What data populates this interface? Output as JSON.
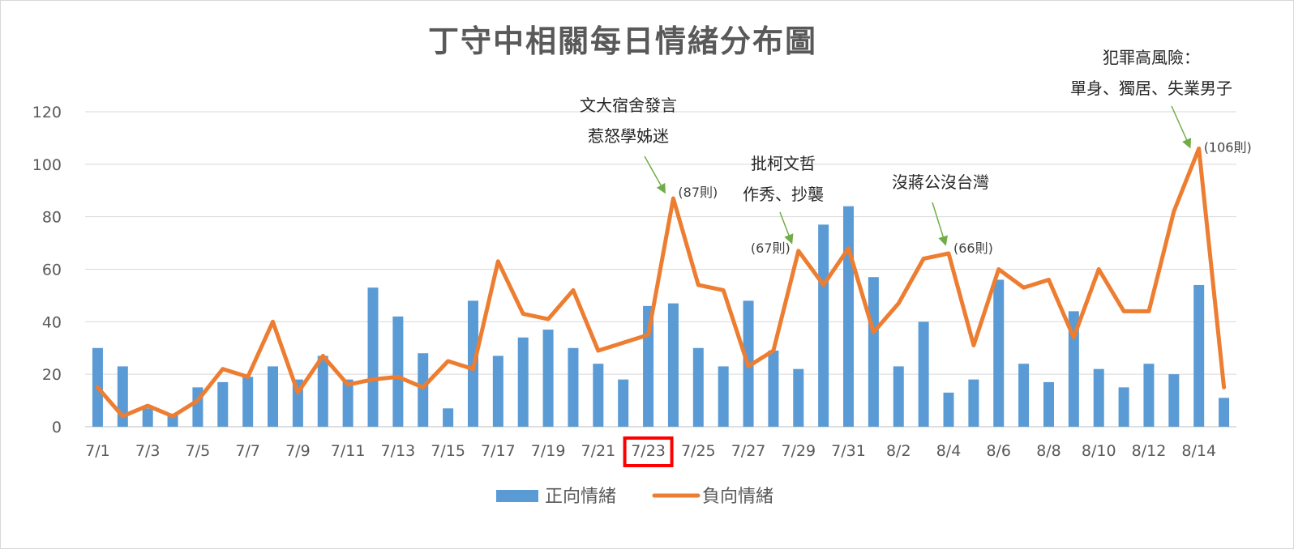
{
  "chart_data": {
    "type": "bar+line",
    "title": "丁守中相關每日情緒分布圖",
    "ylim": [
      0,
      120
    ],
    "yticks": [
      0,
      20,
      40,
      60,
      80,
      100,
      120
    ],
    "grid": true,
    "legend_position": "bottom",
    "categories": [
      "7/1",
      "7/2",
      "7/3",
      "7/4",
      "7/5",
      "7/6",
      "7/7",
      "7/8",
      "7/9",
      "7/10",
      "7/11",
      "7/12",
      "7/13",
      "7/14",
      "7/15",
      "7/16",
      "7/17",
      "7/18",
      "7/19",
      "7/20",
      "7/21",
      "7/22",
      "7/23",
      "7/24",
      "7/25",
      "7/26",
      "7/27",
      "7/28",
      "7/29",
      "7/30",
      "7/31",
      "8/1",
      "8/2",
      "8/3",
      "8/4",
      "8/5",
      "8/6",
      "8/7",
      "8/8",
      "8/9",
      "8/10",
      "8/11",
      "8/12",
      "8/13",
      "8/14",
      "8/15"
    ],
    "x_tick_labels": [
      "7/1",
      "7/3",
      "7/5",
      "7/7",
      "7/9",
      "7/11",
      "7/13",
      "7/15",
      "7/17",
      "7/19",
      "7/21",
      "7/23",
      "7/25",
      "7/27",
      "7/29",
      "7/31",
      "8/2",
      "8/4",
      "8/6",
      "8/8",
      "8/10",
      "8/12",
      "8/14"
    ],
    "highlighted_tick": "7/23",
    "series": [
      {
        "name": "正向情緒",
        "kind": "bar",
        "color": "#5b9bd5",
        "values": [
          30,
          23,
          7,
          5,
          15,
          17,
          19,
          23,
          18,
          27,
          18,
          53,
          42,
          28,
          7,
          48,
          27,
          34,
          37,
          30,
          24,
          18,
          46,
          47,
          30,
          23,
          48,
          29,
          22,
          77,
          84,
          57,
          23,
          40,
          13,
          18,
          56,
          24,
          17,
          44,
          22,
          15,
          24,
          20,
          54,
          11
        ]
      },
      {
        "name": "負向情緒",
        "kind": "line",
        "color": "#ed7d31",
        "values": [
          15,
          4,
          8,
          4,
          10,
          22,
          19,
          40,
          13,
          27,
          16,
          18,
          19,
          15,
          25,
          22,
          63,
          43,
          41,
          52,
          29,
          32,
          35,
          87,
          54,
          52,
          23,
          29,
          67,
          54,
          68,
          36,
          47,
          64,
          66,
          31,
          60,
          53,
          56,
          34,
          60,
          44,
          44,
          82,
          106,
          15
        ]
      }
    ],
    "annotations": [
      {
        "lines": [
          "文大宿舍發言",
          "惹怒學姊迷"
        ],
        "point": "7/24",
        "value_label": "(87則)"
      },
      {
        "lines": [
          "批柯文哲",
          "作秀、抄襲"
        ],
        "point": "7/29",
        "value_label": "(67則)"
      },
      {
        "lines": [
          "沒蔣公沒台灣"
        ],
        "point": "8/4",
        "value_label": "(66則)"
      },
      {
        "lines": [
          "犯罪高風險：",
          "單身、獨居、失業男子"
        ],
        "point": "8/14",
        "value_label": "(106則)"
      }
    ],
    "colors": {
      "arrow": "#70ad47",
      "highlight_box": "#ff0000",
      "grid": "#d9d9d9",
      "text": "#595959"
    }
  }
}
